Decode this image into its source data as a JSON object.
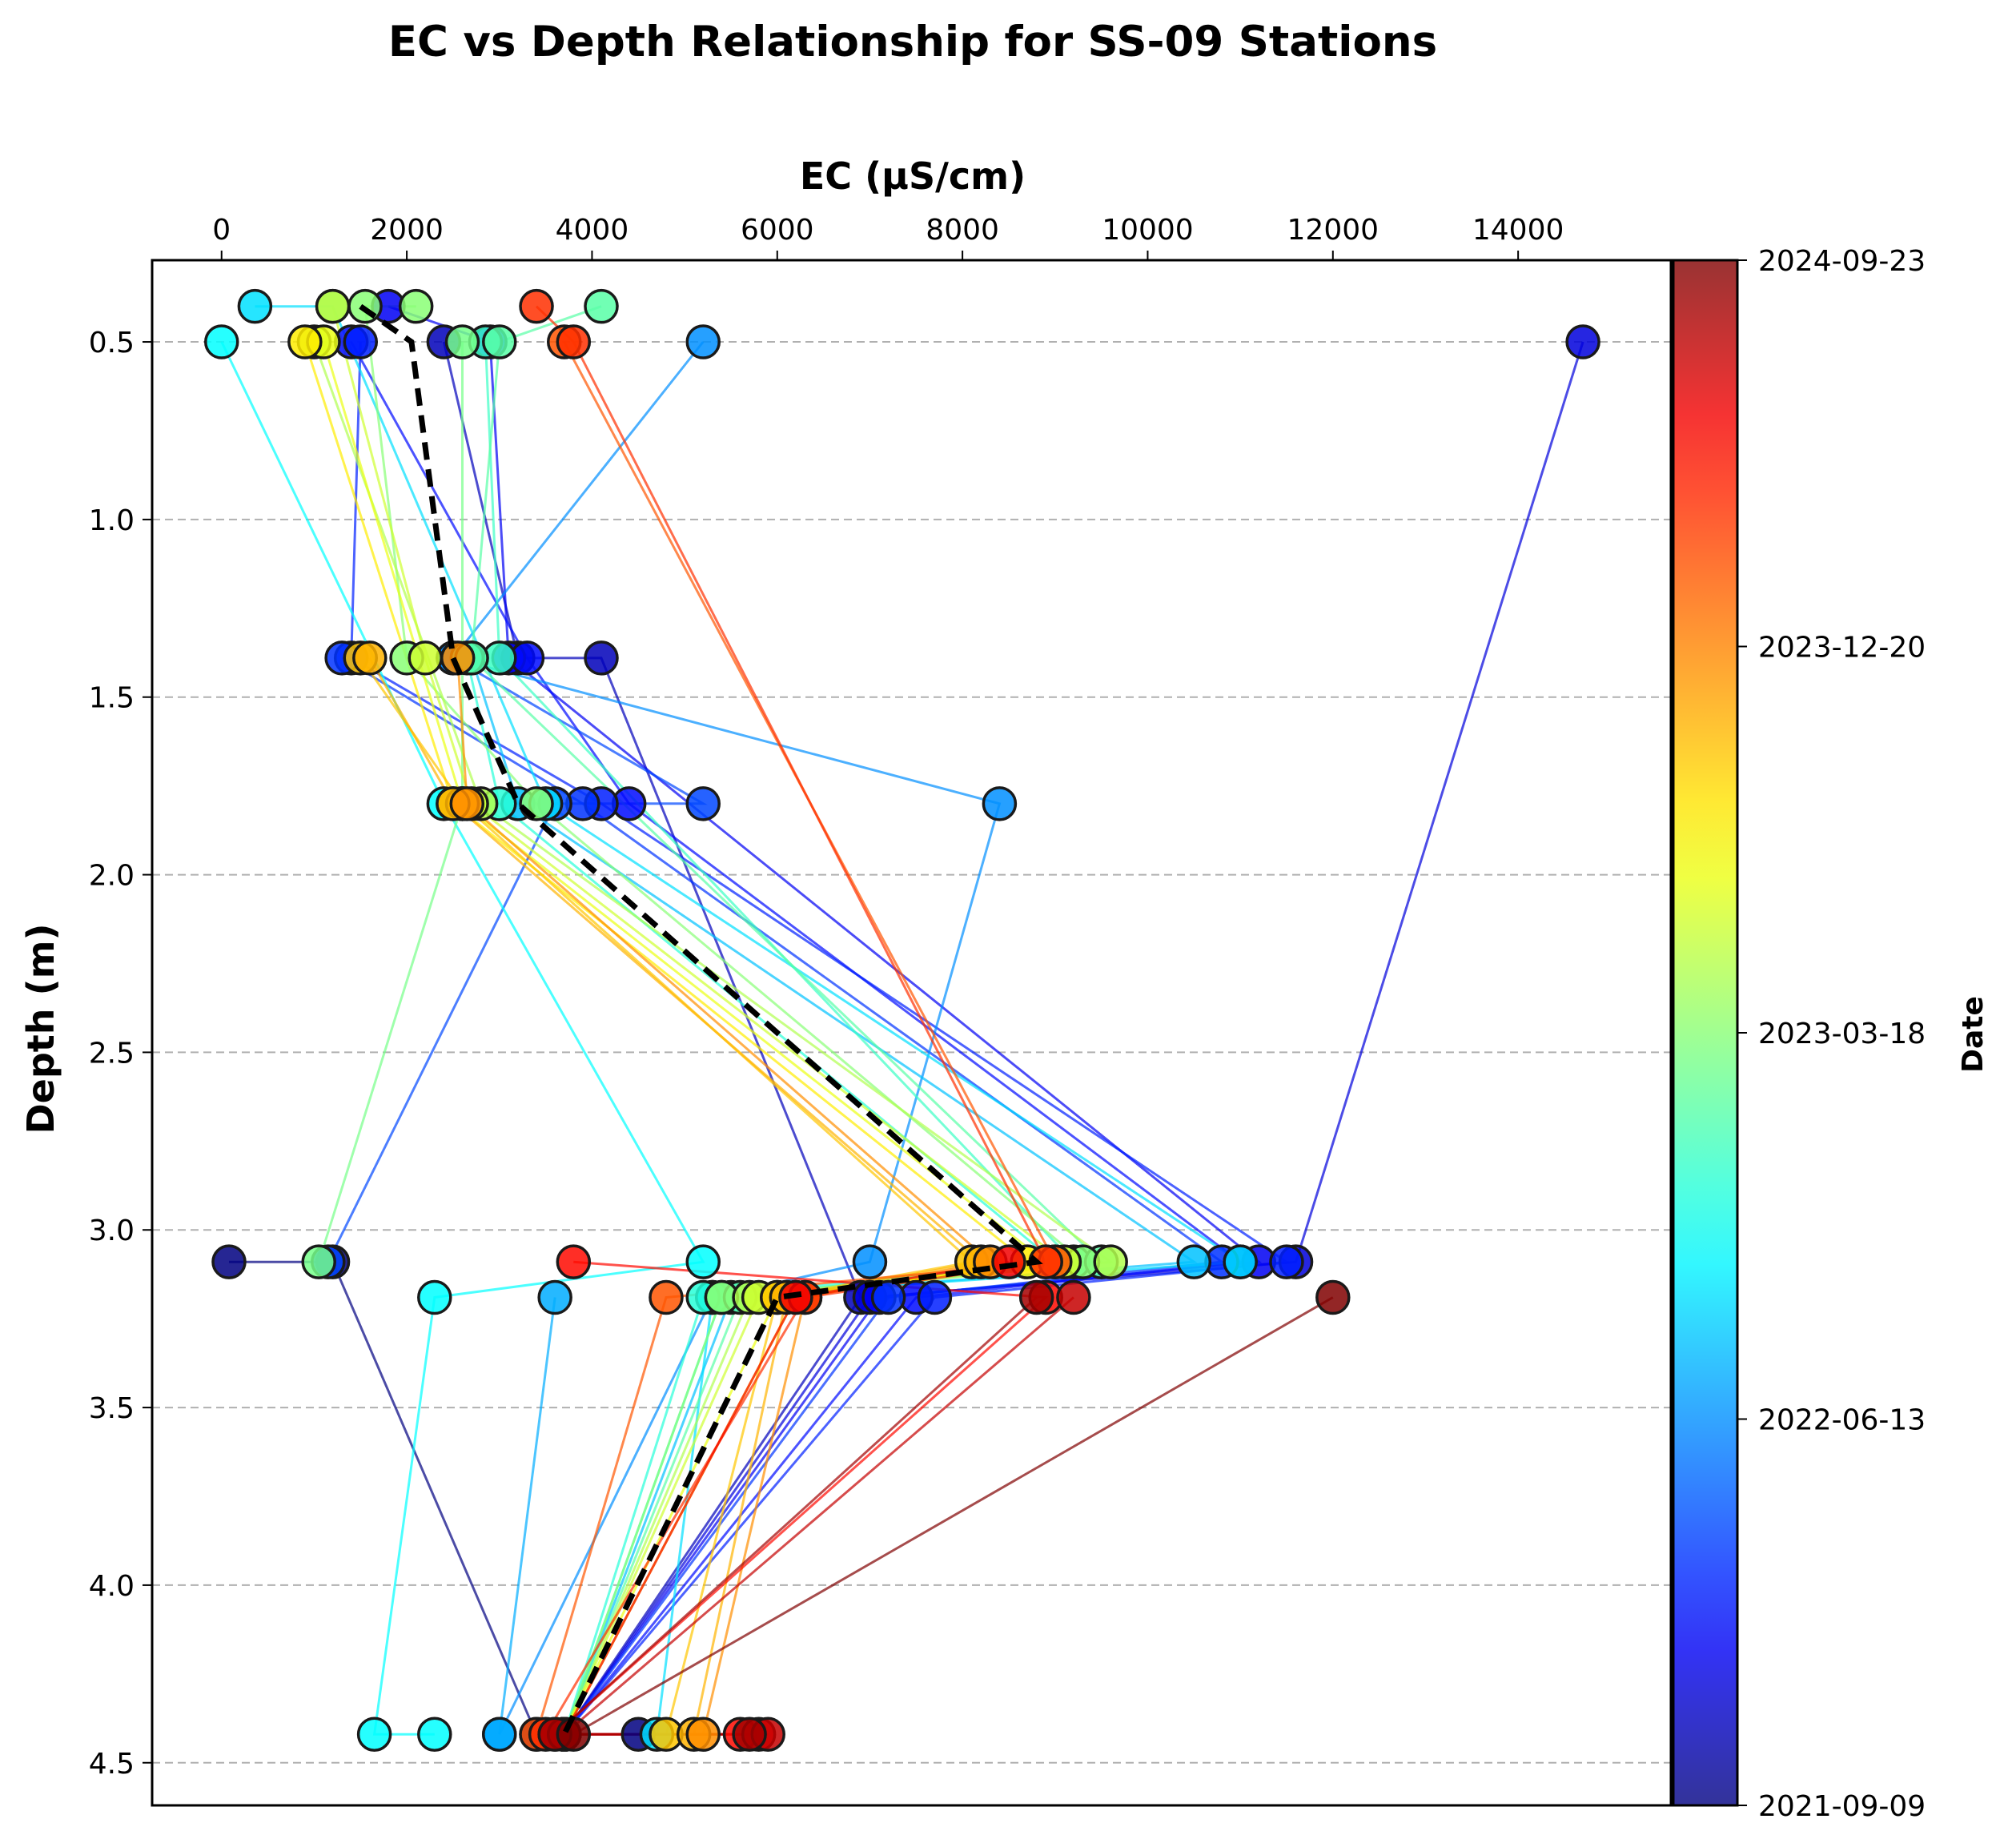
{
  "chart_data": {
    "type": "line",
    "title": "EC vs Depth Relationship for SS-09 Stations",
    "xlabel": "EC (µS/cm)",
    "ylabel": "Depth (m)",
    "x_axis_position": "top",
    "y_axis_inverted": true,
    "xlim": [
      -750,
      15650
    ],
    "ylim": [
      4.62,
      0.27
    ],
    "x_ticks": [
      "0",
      "2000",
      "4000",
      "6000",
      "8000",
      "10000",
      "12000",
      "14000"
    ],
    "x_tick_values": [
      0,
      2000,
      4000,
      6000,
      8000,
      10000,
      12000,
      14000
    ],
    "y_ticks": [
      "0.5",
      "1.0",
      "1.5",
      "2.0",
      "2.5",
      "3.0",
      "3.5",
      "4.0",
      "4.5"
    ],
    "y_tick_values": [
      0.5,
      1.0,
      1.5,
      2.0,
      2.5,
      3.0,
      3.5,
      4.0,
      4.5
    ],
    "grid": "horizontal dashed",
    "colorbar": {
      "label": "Date",
      "colormap": "jet",
      "ticks": [
        "2021-09-09",
        "2022-06-13",
        "2023-03-18",
        "2023-12-20",
        "2024-09-23"
      ],
      "colors": [
        "#000080",
        "#0000ff",
        "#00ffff",
        "#ffff00",
        "#ff0000",
        "#800000"
      ]
    },
    "mean_profile": {
      "style": "black dashed",
      "points": [
        [
          1500,
          0.4
        ],
        [
          2050,
          0.5
        ],
        [
          2500,
          1.39
        ],
        [
          3200,
          1.8
        ],
        [
          8800,
          3.09
        ],
        [
          6000,
          3.19
        ],
        [
          3700,
          4.42
        ]
      ]
    },
    "profiles": [
      {
        "t": 0.0,
        "points": [
          [
            80,
            3.09
          ],
          [
            1200,
            3.09
          ],
          [
            3400,
            4.42
          ],
          [
            4500,
            4.42
          ]
        ]
      },
      {
        "t": 0.05,
        "points": [
          [
            2400,
            0.5
          ],
          [
            3200,
            1.39
          ],
          [
            4100,
            1.39
          ],
          [
            6900,
            3.19
          ],
          [
            3700,
            4.42
          ]
        ]
      },
      {
        "t": 0.08,
        "points": [
          [
            14700,
            0.5
          ],
          [
            11600,
            3.09
          ],
          [
            7000,
            3.19
          ],
          [
            3700,
            4.42
          ]
        ]
      },
      {
        "t": 0.1,
        "points": [
          [
            1800,
            0.4
          ],
          [
            2900,
            0.5
          ],
          [
            3100,
            1.39
          ],
          [
            11200,
            3.09
          ],
          [
            7100,
            3.19
          ],
          [
            3700,
            4.42
          ]
        ]
      },
      {
        "t": 0.12,
        "points": [
          [
            1400,
            0.5
          ],
          [
            3300,
            1.39
          ],
          [
            4400,
            1.8
          ],
          [
            11000,
            3.09
          ],
          [
            7500,
            3.19
          ],
          [
            3700,
            4.42
          ]
        ]
      },
      {
        "t": 0.14,
        "points": [
          [
            1500,
            0.5
          ],
          [
            1400,
            1.39
          ],
          [
            4100,
            1.8
          ],
          [
            11500,
            3.09
          ],
          [
            7700,
            3.19
          ],
          [
            3700,
            4.42
          ]
        ]
      },
      {
        "t": 0.16,
        "points": [
          [
            1300,
            1.39
          ],
          [
            3900,
            1.8
          ],
          [
            10800,
            3.09
          ],
          [
            7200,
            3.19
          ],
          [
            3700,
            4.42
          ]
        ]
      },
      {
        "t": 0.18,
        "points": [
          [
            2500,
            1.39
          ],
          [
            5200,
            1.8
          ],
          [
            3600,
            1.8
          ],
          [
            1150,
            3.09
          ]
        ]
      },
      {
        "t": 0.25,
        "points": [
          [
            5200,
            0.5
          ],
          [
            2500,
            1.39
          ],
          [
            8400,
            1.8
          ],
          [
            7000,
            3.09
          ],
          [
            5300,
            3.19
          ],
          [
            3000,
            4.42
          ]
        ]
      },
      {
        "t": 0.28,
        "points": [
          [
            3600,
            3.19
          ],
          [
            3000,
            4.42
          ]
        ]
      },
      {
        "t": 0.3,
        "points": [
          [
            2700,
            1.39
          ],
          [
            3200,
            1.8
          ],
          [
            10500,
            3.09
          ],
          [
            5500,
            3.19
          ],
          [
            3700,
            4.42
          ]
        ]
      },
      {
        "t": 0.33,
        "points": [
          [
            360,
            0.4
          ],
          [
            1200,
            0.4
          ],
          [
            3500,
            1.8
          ],
          [
            11000,
            3.09
          ],
          [
            5300,
            3.19
          ],
          [
            4700,
            4.42
          ]
        ]
      },
      {
        "t": 0.36,
        "points": [
          [
            0,
            0.5
          ],
          [
            2400,
            1.8
          ],
          [
            5200,
            3.09
          ],
          [
            2300,
            3.19
          ],
          [
            1650,
            4.42
          ],
          [
            2300,
            4.42
          ]
        ]
      },
      {
        "t": 0.4,
        "points": [
          [
            2650,
            1.39
          ],
          [
            3000,
            1.8
          ],
          [
            9000,
            3.09
          ],
          [
            5200,
            3.19
          ],
          [
            3700,
            4.42
          ]
        ]
      },
      {
        "t": 0.42,
        "points": [
          [
            2850,
            0.5
          ],
          [
            3000,
            1.39
          ],
          [
            9200,
            3.09
          ],
          [
            5400,
            3.19
          ],
          [
            3700,
            4.42
          ]
        ]
      },
      {
        "t": 0.45,
        "points": [
          [
            4100,
            0.4
          ],
          [
            3000,
            0.5
          ],
          [
            2700,
            1.39
          ],
          [
            9500,
            3.09
          ],
          [
            5600,
            3.19
          ],
          [
            3700,
            4.42
          ]
        ]
      },
      {
        "t": 0.48,
        "points": [
          [
            2600,
            0.5
          ],
          [
            2600,
            1.8
          ],
          [
            1050,
            3.09
          ]
        ]
      },
      {
        "t": 0.5,
        "points": [
          [
            2100,
            0.4
          ],
          [
            1550,
            0.4
          ],
          [
            2000,
            1.39
          ],
          [
            3400,
            1.8
          ],
          [
            9300,
            3.09
          ],
          [
            5400,
            3.19
          ],
          [
            3700,
            4.42
          ]
        ]
      },
      {
        "t": 0.54,
        "points": [
          [
            1000,
            0.5
          ],
          [
            2800,
            1.8
          ],
          [
            9600,
            3.09
          ],
          [
            5700,
            3.19
          ],
          [
            3700,
            4.42
          ]
        ]
      },
      {
        "t": 0.57,
        "points": [
          [
            1200,
            0.4
          ],
          [
            2200,
            1.39
          ],
          [
            2700,
            1.8
          ],
          [
            9100,
            3.09
          ],
          [
            5800,
            3.19
          ],
          [
            3700,
            4.42
          ]
        ]
      },
      {
        "t": 0.6,
        "points": [
          [
            1100,
            0.5
          ],
          [
            2600,
            1.8
          ],
          [
            8900,
            3.09
          ],
          [
            6000,
            3.19
          ],
          [
            3700,
            4.42
          ]
        ]
      },
      {
        "t": 0.64,
        "points": [
          [
            900,
            0.5
          ],
          [
            2500,
            1.8
          ],
          [
            8700,
            3.09
          ],
          [
            6200,
            3.19
          ],
          [
            3700,
            4.42
          ]
        ]
      },
      {
        "t": 0.68,
        "points": [
          [
            1500,
            1.39
          ],
          [
            2600,
            1.8
          ],
          [
            8100,
            3.09
          ],
          [
            6000,
            3.19
          ],
          [
            4800,
            4.42
          ]
        ]
      },
      {
        "t": 0.7,
        "points": [
          [
            1600,
            1.39
          ],
          [
            2500,
            1.8
          ],
          [
            8200,
            3.09
          ],
          [
            6100,
            3.19
          ],
          [
            5100,
            4.42
          ]
        ]
      },
      {
        "t": 0.74,
        "points": [
          [
            2550,
            1.39
          ],
          [
            2650,
            1.8
          ],
          [
            8300,
            3.09
          ],
          [
            6300,
            3.19
          ],
          [
            5200,
            4.42
          ]
        ]
      },
      {
        "t": 0.8,
        "points": [
          [
            3700,
            0.5
          ],
          [
            9000,
            3.09
          ],
          [
            4800,
            3.19
          ],
          [
            3400,
            4.42
          ]
        ]
      },
      {
        "t": 0.84,
        "points": [
          [
            3400,
            0.4
          ],
          [
            3800,
            0.5
          ],
          [
            8900,
            3.09
          ],
          [
            6300,
            3.19
          ],
          [
            3500,
            4.42
          ]
        ]
      },
      {
        "t": 0.88,
        "points": [
          [
            3800,
            3.09
          ],
          [
            8900,
            3.19
          ],
          [
            3600,
            4.42
          ],
          [
            5600,
            4.42
          ]
        ]
      },
      {
        "t": 0.9,
        "points": [
          [
            8500,
            3.09
          ],
          [
            6200,
            3.19
          ],
          [
            3700,
            4.42
          ],
          [
            5800,
            4.42
          ]
        ]
      },
      {
        "t": 0.94,
        "points": [
          [
            9200,
            3.19
          ],
          [
            3700,
            4.42
          ],
          [
            5900,
            4.42
          ]
        ]
      },
      {
        "t": 0.97,
        "points": [
          [
            8800,
            3.19
          ],
          [
            3600,
            4.42
          ],
          [
            5700,
            4.42
          ]
        ]
      },
      {
        "t": 1.0,
        "points": [
          [
            12000,
            3.19
          ],
          [
            3800,
            4.42
          ]
        ]
      }
    ]
  }
}
